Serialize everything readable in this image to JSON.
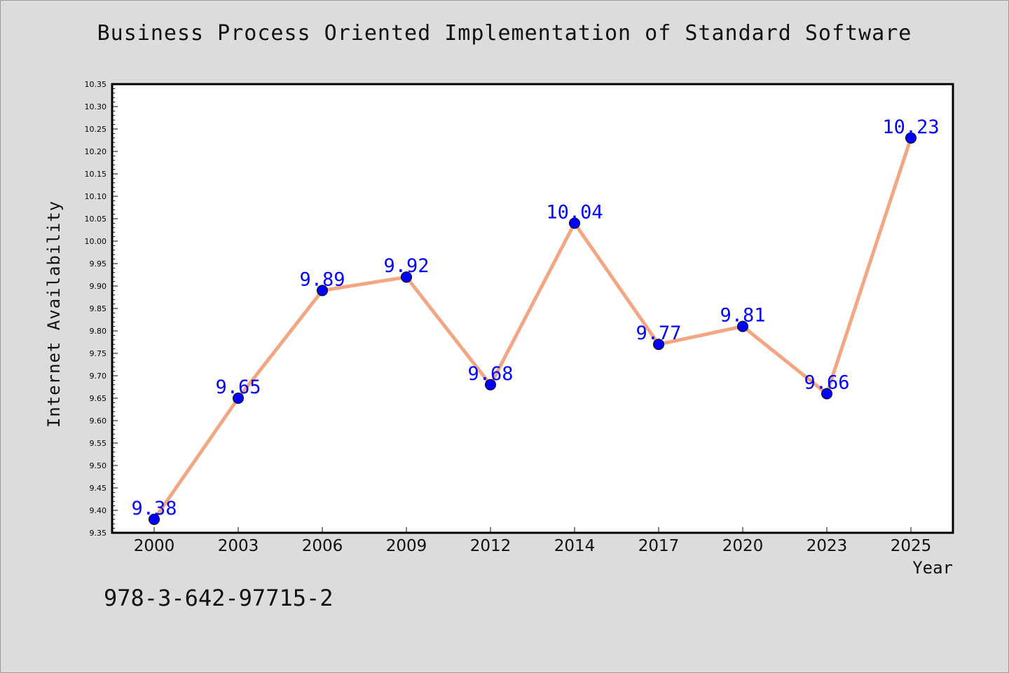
{
  "chart_data": {
    "type": "line",
    "title": "Business Process Oriented Implementation of Standard Software",
    "xlabel": "Year",
    "ylabel": "Internet Availability",
    "categories": [
      "2000",
      "2003",
      "2006",
      "2009",
      "2012",
      "2014",
      "2017",
      "2020",
      "2023",
      "2025"
    ],
    "series": [
      {
        "values": [
          9.38,
          9.65,
          9.89,
          9.92,
          9.68,
          10.04,
          9.77,
          9.81,
          9.66,
          10.23
        ]
      }
    ],
    "ylim": [
      9.35,
      10.35
    ],
    "yticks": [
      "9.35",
      "9.40",
      "9.45",
      "9.50",
      "9.55",
      "9.60",
      "9.65",
      "9.70",
      "9.75",
      "9.80",
      "9.85",
      "9.90",
      "9.95",
      "10.00",
      "10.05",
      "10.10",
      "10.15",
      "10.20",
      "10.25",
      "10.30",
      "10.35"
    ],
    "data_labels": [
      "9.38",
      "9.65",
      "9.89",
      "9.92",
      "9.68",
      "10.04",
      "9.77",
      "9.81",
      "9.66",
      "10.23"
    ],
    "grid": false,
    "legend": "none",
    "colors": {
      "line": "#f4a582",
      "marker": "#0000ff",
      "label": "#0000ff",
      "background": "#dcdcdc",
      "plot_bg": "#ffffff"
    }
  },
  "annotation": "978-3-642-97715-2"
}
